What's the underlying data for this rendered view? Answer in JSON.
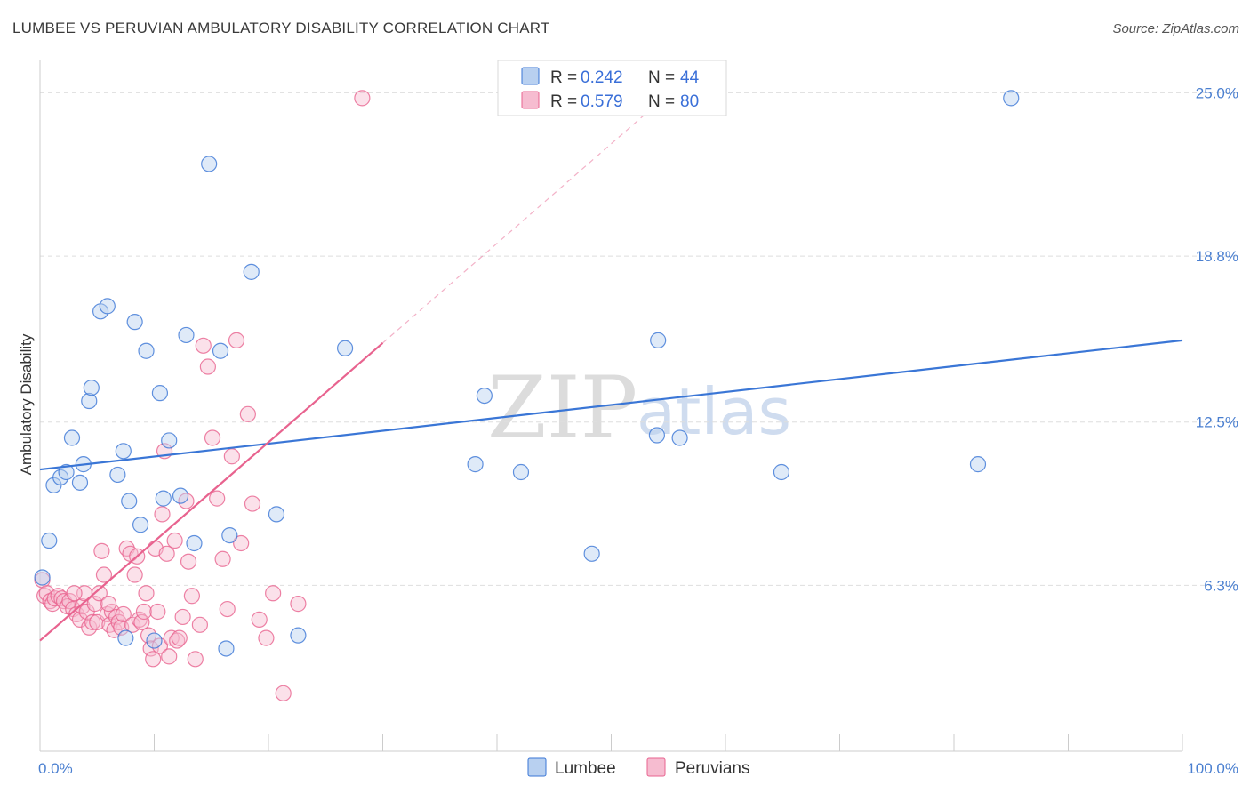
{
  "title": "LUMBEE VS PERUVIAN AMBULATORY DISABILITY CORRELATION CHART",
  "source": "Source: ZipAtlas.com",
  "colors": {
    "lumbee": "#3a76d6",
    "lumbee_fill": "#b8d0f0",
    "peruvian": "#e8638f",
    "peruvian_fill": "#f6bcd0",
    "tick": "#4a7fd0"
  },
  "chart_data": {
    "type": "scatter",
    "xlabel": "",
    "ylabel": "Ambulatory Disability",
    "xlim": [
      0,
      100
    ],
    "ylim": [
      0,
      26.5
    ],
    "x_tick_labels": [
      {
        "value": 0,
        "label": "0.0%"
      },
      {
        "value": 100,
        "label": "100.0%"
      }
    ],
    "y_tick_labels": [
      {
        "value": 6.3,
        "label": "6.3%"
      },
      {
        "value": 12.5,
        "label": "12.5%"
      },
      {
        "value": 18.8,
        "label": "18.8%"
      },
      {
        "value": 25.0,
        "label": "25.0%"
      }
    ],
    "x_minor_ticks": [
      0,
      10,
      20,
      30,
      40,
      50,
      60,
      70,
      80,
      90,
      100
    ],
    "legend": {
      "position": "top-center",
      "entries": [
        {
          "series": "Lumbee",
          "r_label": "R = ",
          "r_value": "0.242",
          "n_label": "N = ",
          "n_value": "44"
        },
        {
          "series": "Peruvians",
          "r_label": "R = ",
          "r_value": "0.579",
          "n_label": "N = ",
          "n_value": "80"
        }
      ]
    },
    "series": [
      {
        "name": "Lumbee",
        "trend": {
          "x0": 0,
          "y0": 10.7,
          "x1": 100,
          "y1": 15.6
        },
        "points": [
          [
            0.2,
            6.6
          ],
          [
            0.8,
            8.0
          ],
          [
            1.2,
            10.1
          ],
          [
            1.8,
            10.4
          ],
          [
            2.3,
            10.6
          ],
          [
            2.8,
            11.9
          ],
          [
            3.5,
            10.2
          ],
          [
            3.8,
            10.9
          ],
          [
            4.3,
            13.3
          ],
          [
            4.5,
            13.8
          ],
          [
            5.3,
            16.7
          ],
          [
            5.9,
            16.9
          ],
          [
            6.8,
            10.5
          ],
          [
            7.3,
            11.4
          ],
          [
            7.8,
            9.5
          ],
          [
            8.3,
            16.3
          ],
          [
            8.8,
            8.6
          ],
          [
            9.3,
            15.2
          ],
          [
            10.0,
            4.2
          ],
          [
            10.5,
            13.6
          ],
          [
            10.8,
            9.6
          ],
          [
            11.3,
            11.8
          ],
          [
            12.3,
            9.7
          ],
          [
            12.8,
            15.8
          ],
          [
            13.5,
            7.9
          ],
          [
            14.8,
            22.3
          ],
          [
            15.8,
            15.2
          ],
          [
            16.3,
            3.9
          ],
          [
            16.6,
            8.2
          ],
          [
            18.5,
            18.2
          ],
          [
            20.7,
            9.0
          ],
          [
            22.6,
            4.4
          ],
          [
            26.7,
            15.3
          ],
          [
            38.1,
            10.9
          ],
          [
            38.9,
            13.5
          ],
          [
            42.1,
            10.6
          ],
          [
            48.3,
            7.5
          ],
          [
            54.0,
            12.0
          ],
          [
            54.1,
            15.6
          ],
          [
            56.0,
            11.9
          ],
          [
            64.9,
            10.6
          ],
          [
            82.1,
            10.9
          ],
          [
            85.0,
            24.8
          ],
          [
            7.5,
            4.3
          ]
        ]
      },
      {
        "name": "Peruvians",
        "trend": {
          "x0": 0,
          "y0": 4.2,
          "x1": 30,
          "y1": 15.5
        },
        "trend_extension": {
          "x0": 30,
          "y0": 15.5,
          "x1": 53,
          "y1": 24.2
        },
        "points": [
          [
            0.2,
            6.5
          ],
          [
            0.4,
            5.9
          ],
          [
            0.6,
            6.0
          ],
          [
            0.9,
            5.7
          ],
          [
            1.1,
            5.6
          ],
          [
            1.3,
            5.8
          ],
          [
            1.6,
            5.9
          ],
          [
            1.9,
            5.8
          ],
          [
            2.1,
            5.7
          ],
          [
            2.4,
            5.5
          ],
          [
            2.6,
            5.7
          ],
          [
            2.9,
            5.4
          ],
          [
            3.2,
            5.2
          ],
          [
            3.5,
            5.0
          ],
          [
            3.7,
            5.5
          ],
          [
            3.9,
            6.0
          ],
          [
            4.1,
            5.3
          ],
          [
            4.3,
            4.7
          ],
          [
            4.6,
            4.9
          ],
          [
            4.8,
            5.6
          ],
          [
            5.0,
            4.9
          ],
          [
            5.2,
            6.0
          ],
          [
            5.4,
            7.6
          ],
          [
            5.6,
            6.7
          ],
          [
            5.9,
            5.2
          ],
          [
            6.1,
            4.8
          ],
          [
            6.3,
            5.3
          ],
          [
            6.5,
            4.6
          ],
          [
            6.7,
            5.1
          ],
          [
            6.9,
            4.9
          ],
          [
            7.1,
            4.7
          ],
          [
            7.3,
            5.2
          ],
          [
            7.6,
            7.7
          ],
          [
            7.9,
            7.5
          ],
          [
            8.1,
            4.8
          ],
          [
            8.3,
            6.7
          ],
          [
            8.5,
            7.4
          ],
          [
            8.7,
            5.0
          ],
          [
            8.9,
            4.9
          ],
          [
            9.1,
            5.3
          ],
          [
            9.3,
            6.0
          ],
          [
            9.5,
            4.4
          ],
          [
            9.7,
            3.9
          ],
          [
            9.9,
            3.5
          ],
          [
            10.1,
            7.7
          ],
          [
            10.3,
            5.3
          ],
          [
            10.5,
            4.0
          ],
          [
            10.7,
            9.0
          ],
          [
            10.9,
            11.4
          ],
          [
            11.1,
            7.5
          ],
          [
            11.3,
            3.6
          ],
          [
            11.5,
            4.3
          ],
          [
            11.8,
            8.0
          ],
          [
            12.0,
            4.2
          ],
          [
            12.2,
            4.3
          ],
          [
            12.5,
            5.1
          ],
          [
            12.8,
            9.5
          ],
          [
            13.0,
            7.2
          ],
          [
            13.3,
            5.9
          ],
          [
            13.6,
            3.5
          ],
          [
            14.0,
            4.8
          ],
          [
            14.3,
            15.4
          ],
          [
            14.7,
            14.6
          ],
          [
            15.1,
            11.9
          ],
          [
            15.5,
            9.6
          ],
          [
            16.0,
            7.3
          ],
          [
            16.4,
            5.4
          ],
          [
            16.8,
            11.2
          ],
          [
            17.2,
            15.6
          ],
          [
            17.6,
            7.9
          ],
          [
            18.2,
            12.8
          ],
          [
            18.6,
            9.4
          ],
          [
            19.2,
            5.0
          ],
          [
            19.8,
            4.3
          ],
          [
            20.4,
            6.0
          ],
          [
            21.3,
            2.2
          ],
          [
            22.6,
            5.6
          ],
          [
            28.2,
            24.8
          ],
          [
            3.0,
            6.0
          ],
          [
            6.0,
            5.6
          ]
        ]
      }
    ],
    "bottom_legend": [
      "Lumbee",
      "Peruvians"
    ],
    "watermark": {
      "zip": "ZIP",
      "atlas": "atlas"
    }
  }
}
